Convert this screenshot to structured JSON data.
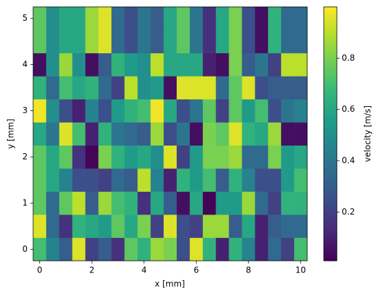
{
  "chart_data": {
    "type": "heatmap",
    "colormap": "viridis",
    "xlabel": "x [mm]",
    "ylabel": "y [mm]",
    "colorbar_label": "velocity [m/s]",
    "x": [
      0,
      0.5,
      1,
      1.5,
      2,
      2.5,
      3,
      3.5,
      4,
      4.5,
      5,
      5.5,
      6,
      6.5,
      7,
      7.5,
      8,
      8.5,
      9,
      9.5,
      10
    ],
    "y": [
      0,
      0.5,
      1,
      1.5,
      2,
      2.5,
      3,
      3.5,
      4,
      4.5,
      5
    ],
    "values": [
      [
        0.7,
        0.45,
        0.3,
        0.95,
        0.2,
        0.3,
        0.15,
        0.75,
        0.65,
        0.85,
        0.8,
        0.25,
        0.95,
        0.65,
        0.1,
        0.65,
        0.45,
        0.1,
        0.35,
        0.2,
        0.7
      ],
      [
        0.95,
        0.35,
        0.15,
        0.65,
        0.6,
        0.55,
        0.75,
        0.6,
        0.8,
        0.2,
        0.95,
        0.25,
        0.2,
        0.85,
        0.85,
        0.3,
        0.6,
        0.1,
        0.3,
        0.35,
        0.35
      ],
      [
        0.75,
        0.35,
        0.75,
        0.9,
        0.3,
        0.85,
        0.7,
        0.65,
        0.15,
        0.6,
        0.3,
        0.05,
        0.6,
        0.02,
        0.55,
        0.55,
        0.85,
        0.35,
        0.2,
        0.65,
        0.65
      ],
      [
        0.75,
        0.6,
        0.45,
        0.25,
        0.25,
        0.2,
        0.35,
        0.3,
        0.9,
        0.45,
        0.1,
        0.65,
        0.55,
        0.7,
        0.3,
        0.65,
        0.45,
        0.25,
        0.25,
        0.55,
        0.7
      ],
      [
        0.75,
        0.6,
        0.75,
        0.15,
        0.02,
        0.8,
        0.65,
        0.55,
        0.6,
        0.5,
        0.95,
        0.2,
        0.55,
        0.8,
        0.8,
        0.85,
        0.35,
        0.35,
        0.8,
        0.55,
        0.6
      ],
      [
        0.6,
        0.4,
        0.95,
        0.7,
        0.1,
        0.65,
        0.4,
        0.35,
        0.3,
        0.85,
        0.25,
        0.4,
        0.05,
        0.8,
        0.75,
        0.95,
        0.65,
        0.6,
        0.85,
        0.05,
        0.05
      ],
      [
        0.98,
        0.5,
        0.25,
        0.1,
        0.45,
        0.25,
        0.55,
        0.65,
        0.7,
        0.98,
        0.6,
        0.25,
        0.4,
        0.75,
        0.2,
        0.75,
        0.55,
        0.7,
        0.25,
        0.4,
        0.45
      ],
      [
        0.65,
        0.35,
        0.7,
        0.6,
        0.65,
        0.35,
        0.2,
        0.9,
        0.5,
        0.55,
        0.05,
        0.95,
        0.95,
        0.95,
        0.35,
        0.75,
        0.95,
        0.25,
        0.3,
        0.3,
        0.3
      ],
      [
        0.05,
        0.5,
        0.85,
        0.5,
        0.05,
        0.3,
        0.65,
        0.55,
        0.5,
        0.9,
        0.6,
        0.6,
        0.6,
        0.1,
        0.05,
        0.8,
        0.3,
        0.4,
        0.2,
        0.9,
        0.9
      ],
      [
        0.75,
        0.5,
        0.6,
        0.6,
        0.85,
        0.95,
        0.35,
        0.25,
        0.4,
        0.3,
        0.6,
        0.75,
        0.4,
        0.15,
        0.6,
        0.8,
        0.25,
        0.05,
        0.65,
        0.35,
        0.35
      ],
      [
        0.75,
        0.5,
        0.6,
        0.6,
        0.85,
        0.95,
        0.35,
        0.25,
        0.4,
        0.3,
        0.6,
        0.75,
        0.4,
        0.15,
        0.6,
        0.8,
        0.25,
        0.05,
        0.65,
        0.35,
        0.35
      ]
    ],
    "xlim": [
      -0.25,
      10.25
    ],
    "ylim": [
      -0.25,
      5.25
    ],
    "xticks": [
      0,
      2,
      4,
      6,
      8,
      10
    ],
    "yticks": [
      0,
      1,
      2,
      3,
      4,
      5
    ],
    "clim": [
      0.01,
      1.0
    ],
    "cticks": [
      0.2,
      0.4,
      0.6,
      0.8
    ]
  }
}
